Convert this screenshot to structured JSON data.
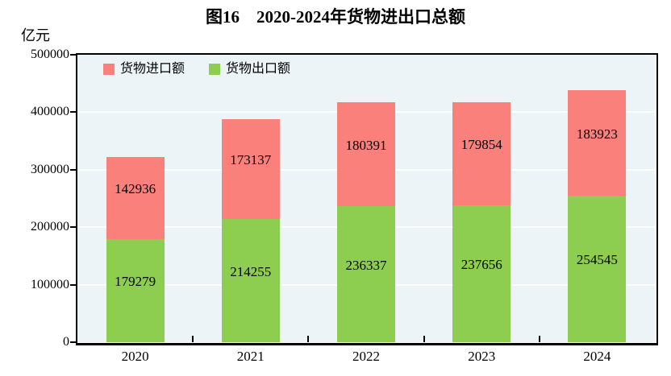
{
  "title": "图16　2020-2024年货物进出口总额",
  "unit_label": "亿元",
  "legend": {
    "items": [
      {
        "label": "货物进口额",
        "color": "#FA807C"
      },
      {
        "label": "货物出口额",
        "color": "#8DCE50"
      }
    ]
  },
  "chart_data": {
    "type": "bar",
    "stacked": true,
    "title": "图16　2020-2024年货物进出口总额",
    "ylabel": "亿元",
    "categories": [
      "2020",
      "2021",
      "2022",
      "2023",
      "2024"
    ],
    "series": [
      {
        "name": "货物出口额",
        "color": "#8DCE50",
        "values": [
          179279,
          214255,
          236337,
          237656,
          254545
        ]
      },
      {
        "name": "货物进口额",
        "color": "#FA807C",
        "values": [
          142936,
          173137,
          180391,
          179854,
          183923
        ]
      }
    ],
    "ylim": [
      0,
      500000
    ],
    "ytick_interval": 100000,
    "ytick_labels": [
      "0",
      "100000",
      "200000",
      "300000",
      "400000",
      "500000"
    ],
    "grid": true,
    "gridline_color": "#FFFFFF",
    "plot_background": "#ECF4F7",
    "legend_position": "top-left-inside"
  }
}
